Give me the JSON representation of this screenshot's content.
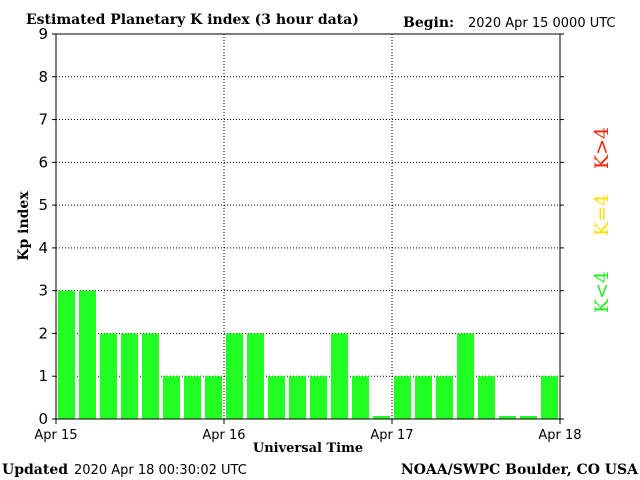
{
  "header": {
    "title": "Estimated Planetary K index (3 hour data)",
    "begin_label": "Begin:",
    "begin_value": "2020 Apr 15 0000 UTC"
  },
  "footer": {
    "updated_label": "Updated",
    "updated_value": "2020 Apr 18 00:30:02 UTC",
    "credit": "NOAA/SWPC Boulder, CO USA"
  },
  "legend": {
    "items": [
      {
        "label": "K>4",
        "color": "#ff2200"
      },
      {
        "label": "K=4",
        "color": "#ffdd00"
      },
      {
        "label": "K<4",
        "color": "#22ee22"
      }
    ]
  },
  "chart_data": {
    "type": "bar",
    "title": "Estimated Planetary K index (3 hour data)",
    "xlabel": "Universal Time",
    "ylabel": "Kp index",
    "ylim": [
      0,
      9
    ],
    "y_ticks": [
      "0",
      "1",
      "2",
      "3",
      "4",
      "5",
      "6",
      "7",
      "8",
      "9"
    ],
    "x_ticks": [
      "Apr 15",
      "Apr 16",
      "Apr 17",
      "Apr 18"
    ],
    "bars_per_day": 8,
    "grid": true,
    "legend_position": "right",
    "bar_color": "#22ff22",
    "values": [
      3,
      3,
      2,
      2,
      2,
      1,
      1,
      1,
      2,
      2,
      1,
      1,
      1,
      2,
      1,
      0.07,
      1,
      1,
      1,
      2,
      1,
      0.07,
      0.07,
      1
    ]
  }
}
